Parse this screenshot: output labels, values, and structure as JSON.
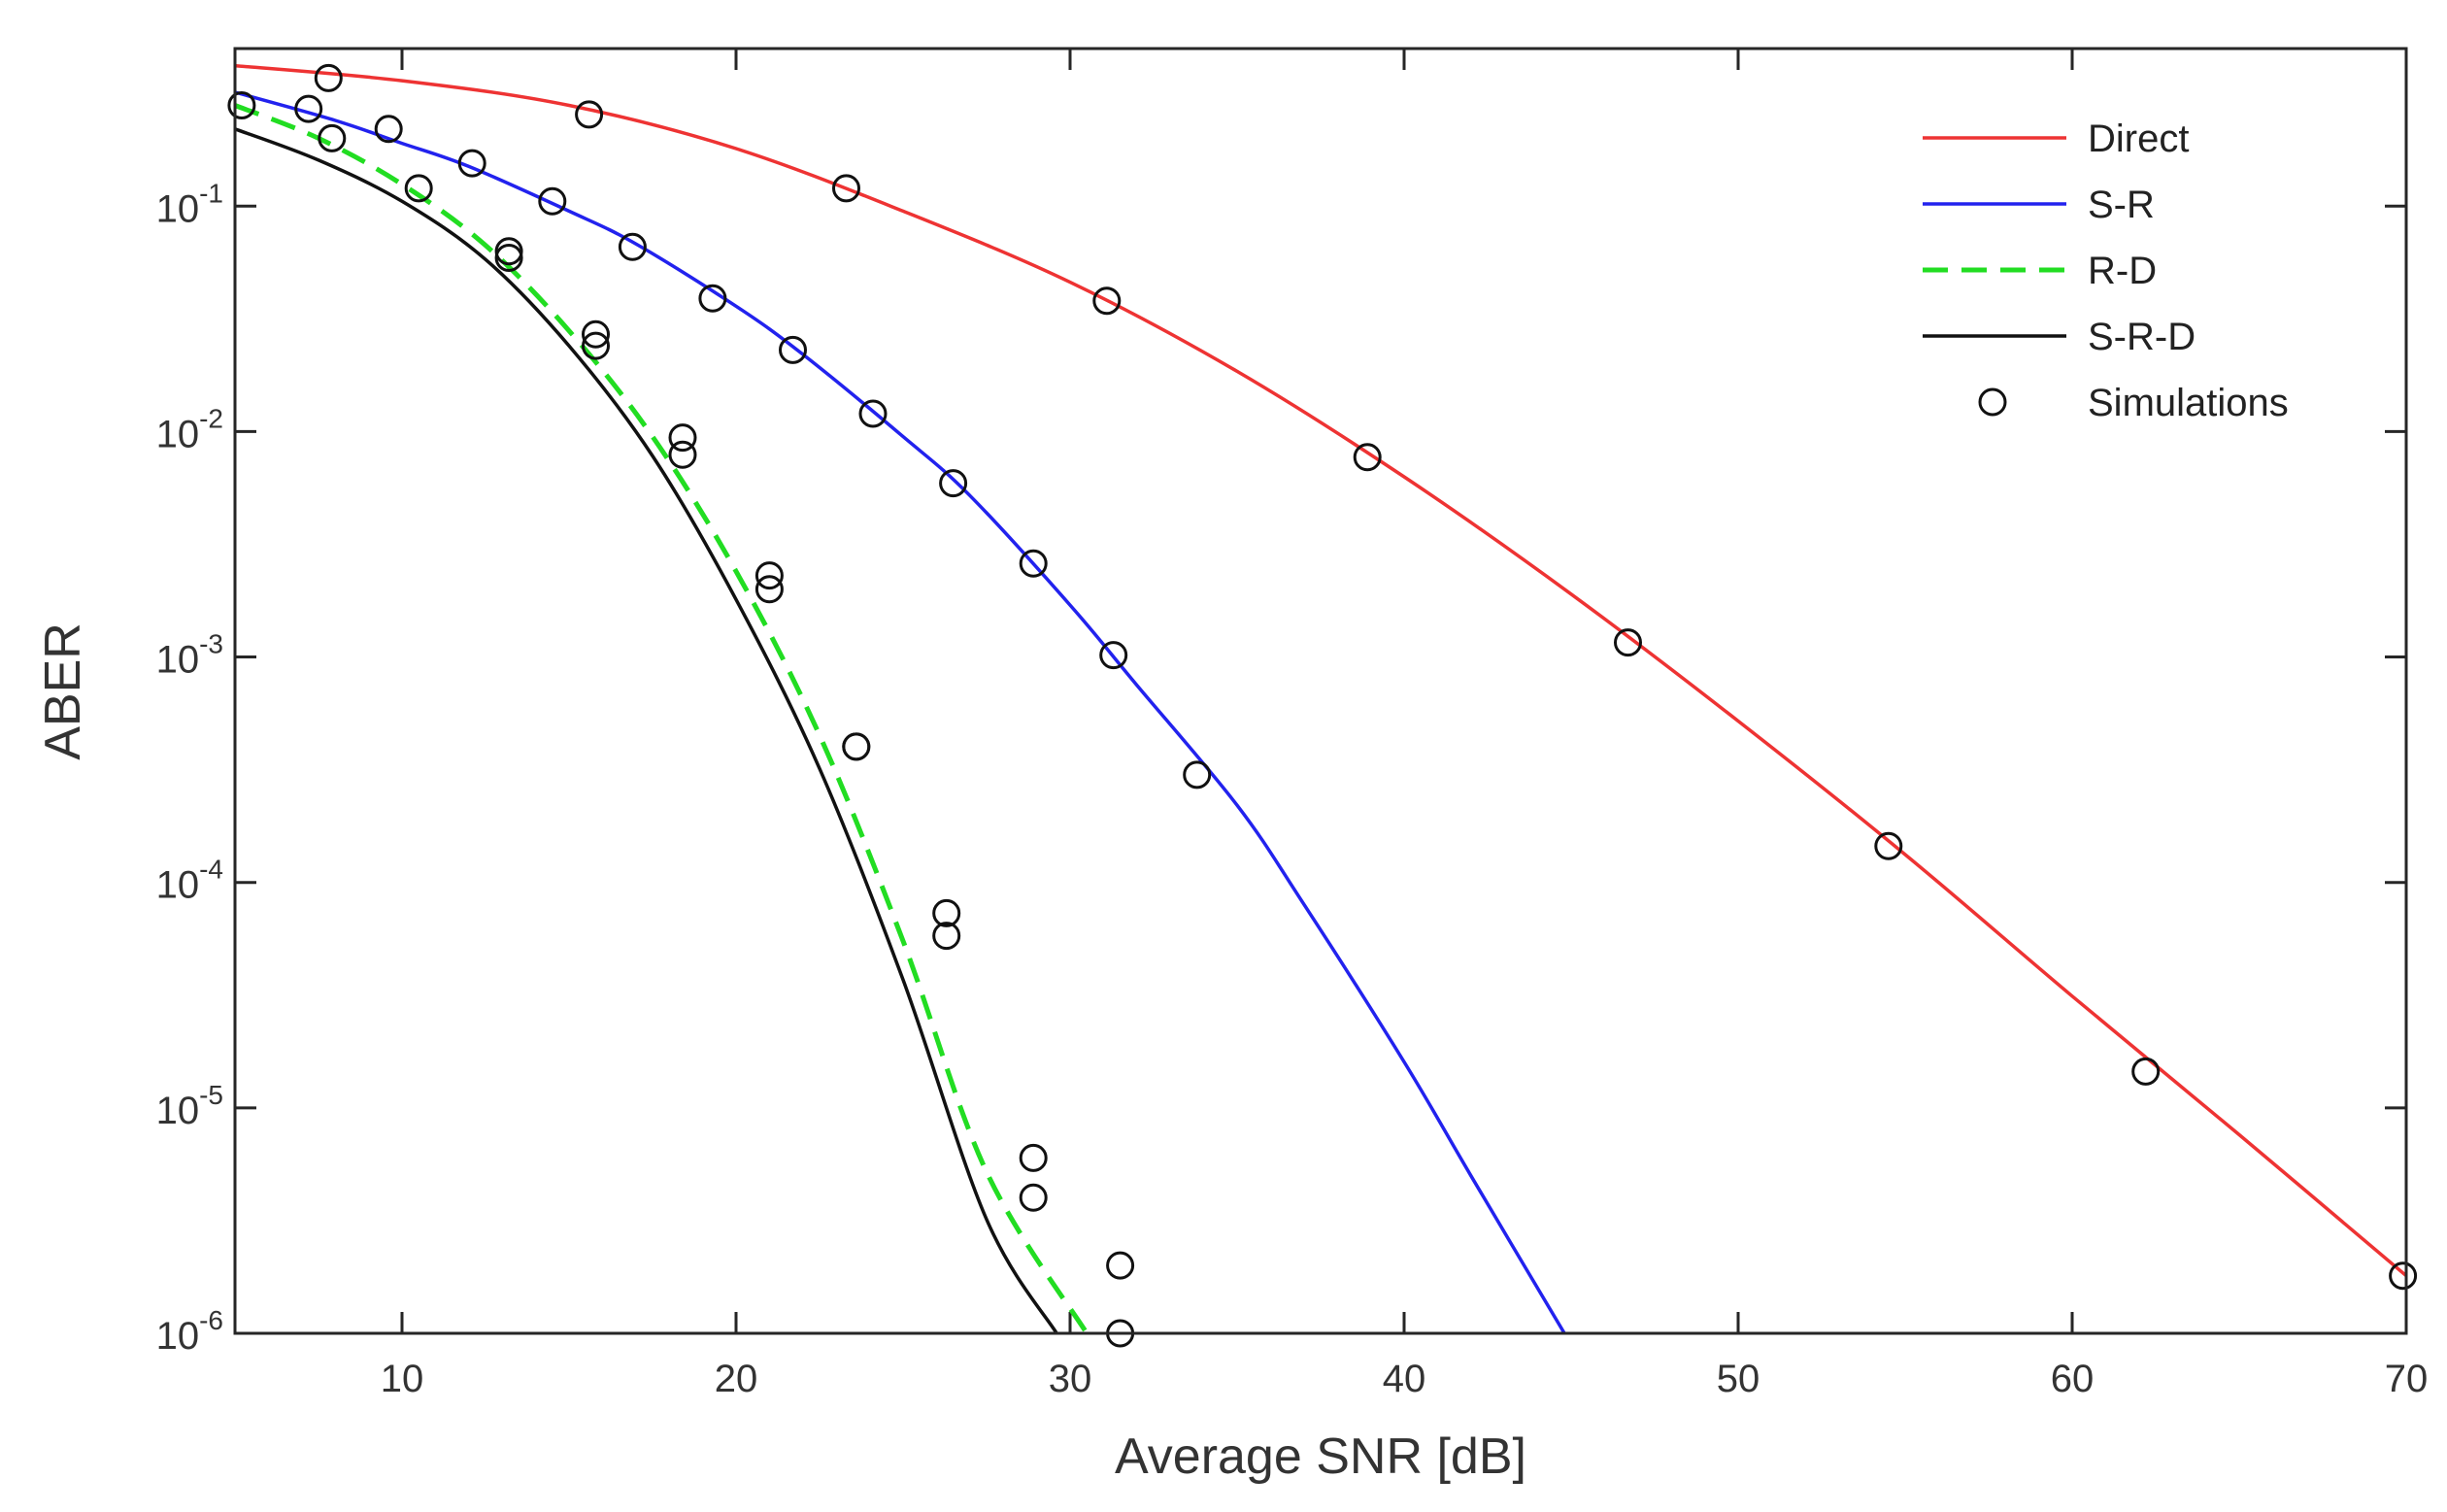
{
  "chart_data": {
    "type": "line",
    "title": "",
    "xlabel": "Average SNR [dB]",
    "ylabel": "ABER",
    "yscale": "log",
    "xlim": [
      5,
      70
    ],
    "ylim": [
      1e-06,
      0.5
    ],
    "x_ticks": [
      {
        "value": 10,
        "label": "10"
      },
      {
        "value": 20,
        "label": "20"
      },
      {
        "value": 30,
        "label": "30"
      },
      {
        "value": 40,
        "label": "40"
      },
      {
        "value": 50,
        "label": "50"
      },
      {
        "value": 60,
        "label": "60"
      },
      {
        "value": 70,
        "label": "70"
      }
    ],
    "y_ticks": [
      {
        "value": 0.1,
        "base": "10",
        "exp": "-1"
      },
      {
        "value": 0.01,
        "base": "10",
        "exp": "-2"
      },
      {
        "value": 0.001,
        "base": "10",
        "exp": "-3"
      },
      {
        "value": 0.0001,
        "base": "10",
        "exp": "-4"
      },
      {
        "value": 1e-05,
        "base": "10",
        "exp": "-5"
      },
      {
        "value": 1e-06,
        "base": "10",
        "exp": "-6"
      }
    ],
    "series": [
      {
        "name": "Direct",
        "color": "#ee3333",
        "style": "solid",
        "x": [
          5,
          10,
          15,
          20,
          25,
          30,
          35,
          40,
          45,
          50,
          55,
          60,
          65,
          70
        ],
        "y": [
          0.42,
          0.36,
          0.28,
          0.18,
          0.095,
          0.046,
          0.0185,
          0.0063,
          0.0019,
          0.00052,
          0.000133,
          3.13e-05,
          7.6e-06,
          1.8e-06
        ]
      },
      {
        "name": "S-R",
        "color": "#2222ee",
        "style": "solid",
        "x": [
          5,
          8,
          10,
          12,
          15,
          17,
          20,
          22,
          25,
          27,
          30,
          32,
          35,
          37,
          40,
          42,
          44.8
        ],
        "y": [
          0.32,
          0.24,
          0.19,
          0.15,
          0.095,
          0.068,
          0.036,
          0.022,
          0.0095,
          0.0052,
          0.0017,
          0.00075,
          0.00022,
          8e-05,
          1.6e-05,
          5e-06,
          1e-06
        ]
      },
      {
        "name": "R-D",
        "color": "#22dd22",
        "style": "dashed",
        "x": [
          5,
          7.5,
          10,
          12.5,
          15,
          17.5,
          20,
          22.5,
          25,
          27.5,
          30.5
        ],
        "y": [
          0.28,
          0.2,
          0.125,
          0.067,
          0.028,
          0.0095,
          0.0024,
          0.00045,
          5.5e-05,
          5.2e-06,
          1e-06
        ]
      },
      {
        "name": "S-R-D",
        "color": "#111111",
        "style": "solid",
        "x": [
          5,
          7.5,
          10,
          12.5,
          15,
          17.5,
          20,
          22.5,
          25,
          27.5,
          29.6
        ],
        "y": [
          0.22,
          0.16,
          0.105,
          0.058,
          0.024,
          0.0078,
          0.0018,
          0.00032,
          3.7e-05,
          3.2e-06,
          1e-06
        ]
      },
      {
        "name": "Simulations",
        "color": "#111111",
        "style": "markers",
        "marker": "circle",
        "points": [
          [
            5.2,
            0.28
          ],
          [
            7.2,
            0.27
          ],
          [
            7.8,
            0.37
          ],
          [
            7.9,
            0.2
          ],
          [
            9.6,
            0.22
          ],
          [
            10.5,
            0.12
          ],
          [
            12.1,
            0.155
          ],
          [
            14.5,
            0.105
          ],
          [
            15.6,
            0.255
          ],
          [
            16.9,
            0.066
          ],
          [
            19.3,
            0.039
          ],
          [
            21.7,
            0.023
          ],
          [
            23.3,
            0.12
          ],
          [
            24.1,
            0.012
          ],
          [
            26.5,
            0.0059
          ],
          [
            28.9,
            0.0026
          ],
          [
            31.1,
            0.038
          ],
          [
            31.3,
            0.00102
          ],
          [
            33.8,
            0.0003
          ],
          [
            38.9,
            0.0077
          ],
          [
            46.7,
            0.00116
          ],
          [
            54.5,
            0.000145
          ],
          [
            62.2,
            1.45e-05
          ],
          [
            69.9,
            1.8e-06
          ],
          [
            13.2,
            0.063
          ],
          [
            13.2,
            0.059
          ],
          [
            15.8,
            0.027
          ],
          [
            15.8,
            0.024
          ],
          [
            18.4,
            0.0094
          ],
          [
            18.4,
            0.0079
          ],
          [
            21,
            0.0023
          ],
          [
            21,
            0.002
          ],
          [
            23.6,
            0.0004
          ],
          [
            23.6,
            0.0004
          ],
          [
            26.3,
            7.3e-05
          ],
          [
            26.3,
            5.8e-05
          ],
          [
            28.9,
            6e-06
          ],
          [
            28.9,
            4e-06
          ],
          [
            31.5,
            2e-06
          ],
          [
            31.5,
            1e-06
          ]
        ]
      }
    ],
    "legend": {
      "position": "top-right",
      "entries": [
        {
          "label": "Direct",
          "color": "#ee3333",
          "style": "solid"
        },
        {
          "label": "S-R",
          "color": "#2222ee",
          "style": "solid"
        },
        {
          "label": "R-D",
          "color": "#22dd22",
          "style": "dashed"
        },
        {
          "label": "S-R-D",
          "color": "#111111",
          "style": "solid"
        },
        {
          "label": "Simulations",
          "color": "#111111",
          "style": "marker"
        }
      ]
    }
  }
}
